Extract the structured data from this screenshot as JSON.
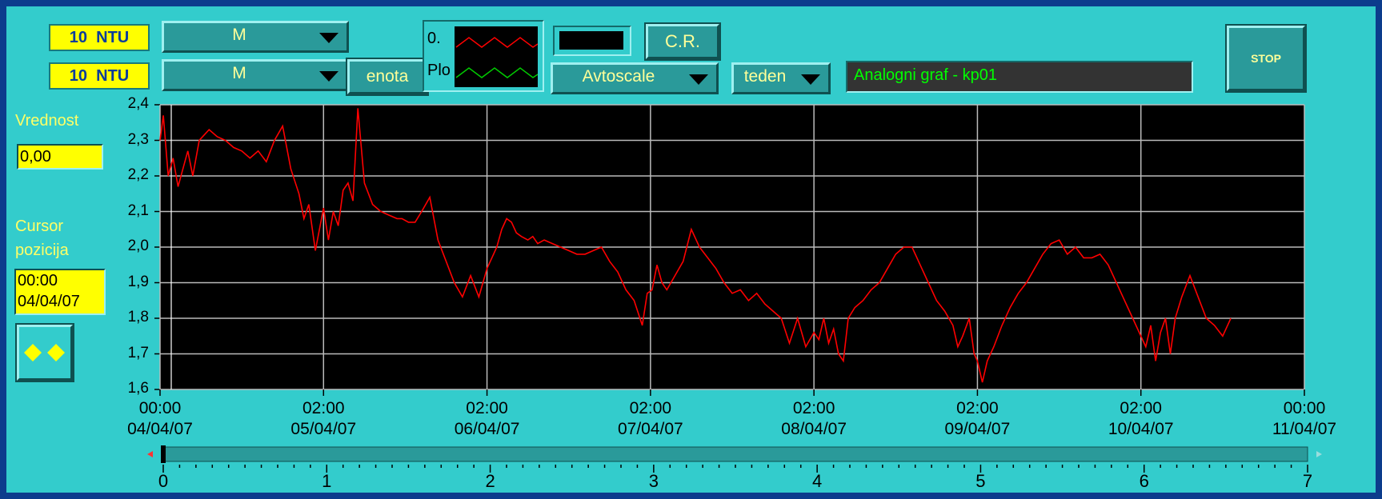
{
  "units": [
    {
      "value": "10",
      "unit": "NTU"
    },
    {
      "value": "10",
      "unit": "NTU"
    }
  ],
  "selectors": {
    "mode_1": "M",
    "mode_2": "M",
    "scale": "Avtoscale",
    "period": "teden"
  },
  "buttons": {
    "enota": "enota",
    "cr": "C.R.",
    "stop": "STOP"
  },
  "legend": {
    "row1_label": "0.",
    "row2_label": "Plo"
  },
  "graph_title": "Analogni graf - kp01",
  "value_panel": {
    "label": "Vrednost",
    "value": "0,00"
  },
  "cursor_panel": {
    "label_line1": "Cursor",
    "label_line2": "pozicija",
    "time": "00:00",
    "date": "04/04/07"
  },
  "icons": {
    "cursor_move": "diamond-pair-icon"
  },
  "colors": {
    "panel": "#33cccc",
    "plot_bg": "#000000",
    "trace": "#ff0000",
    "indicator": "#ffff00",
    "title_text": "#00ff00"
  },
  "chart_data": {
    "type": "line",
    "ylim": [
      1.6,
      2.4
    ],
    "y_ticks": [
      "2,4",
      "2,3",
      "2,2",
      "2,1",
      "2,0",
      "1,9",
      "1,8",
      "1,7",
      "1,6"
    ],
    "x_ticks": [
      {
        "time": "00:00",
        "date": "04/04/07"
      },
      {
        "time": "02:00",
        "date": "05/04/07"
      },
      {
        "time": "02:00",
        "date": "06/04/07"
      },
      {
        "time": "02:00",
        "date": "07/04/07"
      },
      {
        "time": "02:00",
        "date": "08/04/07"
      },
      {
        "time": "02:00",
        "date": "09/04/07"
      },
      {
        "time": "02:00",
        "date": "10/04/07"
      },
      {
        "time": "00:00",
        "date": "11/04/07"
      }
    ],
    "grid": true,
    "series": [
      {
        "color": "#ff0000",
        "x": [
          0.0,
          0.02,
          0.05,
          0.08,
          0.11,
          0.14,
          0.17,
          0.2,
          0.24,
          0.28,
          0.3,
          0.35,
          0.4,
          0.45,
          0.5,
          0.55,
          0.6,
          0.65,
          0.7,
          0.75,
          0.8,
          0.85,
          0.88,
          0.91,
          0.95,
          1.0,
          1.03,
          1.06,
          1.09,
          1.12,
          1.15,
          1.18,
          1.21,
          1.25,
          1.3,
          1.35,
          1.4,
          1.45,
          1.48,
          1.52,
          1.56,
          1.6,
          1.65,
          1.7,
          1.75,
          1.8,
          1.85,
          1.9,
          1.95,
          2.0,
          2.03,
          2.06,
          2.09,
          2.12,
          2.15,
          2.18,
          2.21,
          2.25,
          2.28,
          2.31,
          2.35,
          2.4,
          2.45,
          2.5,
          2.55,
          2.6,
          2.65,
          2.7,
          2.75,
          2.8,
          2.85,
          2.9,
          2.95,
          2.98,
          3.01,
          3.04,
          3.07,
          3.1,
          3.15,
          3.2,
          3.25,
          3.3,
          3.35,
          3.4,
          3.45,
          3.5,
          3.55,
          3.6,
          3.65,
          3.7,
          3.75,
          3.8,
          3.85,
          3.9,
          3.95,
          4.0,
          4.03,
          4.06,
          4.09,
          4.12,
          4.15,
          4.18,
          4.21,
          4.25,
          4.3,
          4.35,
          4.4,
          4.45,
          4.5,
          4.55,
          4.6,
          4.65,
          4.7,
          4.75,
          4.8,
          4.85,
          4.88,
          4.91,
          4.95,
          4.98,
          5.0,
          5.03,
          5.06,
          5.1,
          5.15,
          5.2,
          5.25,
          5.3,
          5.35,
          5.4,
          5.45,
          5.5,
          5.55,
          5.6,
          5.65,
          5.7,
          5.75,
          5.8,
          5.85,
          5.9,
          5.95,
          6.0,
          6.03,
          6.06,
          6.09,
          6.12,
          6.15,
          6.18,
          6.21,
          6.25,
          6.3,
          6.35,
          6.4,
          6.45,
          6.5,
          6.55
        ],
        "y": [
          2.3,
          2.37,
          2.2,
          2.25,
          2.17,
          2.22,
          2.27,
          2.2,
          2.3,
          2.32,
          2.33,
          2.31,
          2.3,
          2.28,
          2.27,
          2.25,
          2.27,
          2.24,
          2.3,
          2.34,
          2.22,
          2.15,
          2.08,
          2.12,
          1.99,
          2.11,
          2.02,
          2.1,
          2.06,
          2.16,
          2.18,
          2.13,
          2.39,
          2.18,
          2.12,
          2.1,
          2.09,
          2.08,
          2.08,
          2.07,
          2.07,
          2.1,
          2.14,
          2.02,
          1.96,
          1.9,
          1.86,
          1.92,
          1.86,
          1.94,
          1.97,
          2.0,
          2.05,
          2.08,
          2.07,
          2.04,
          2.03,
          2.02,
          2.03,
          2.01,
          2.02,
          2.01,
          2.0,
          1.99,
          1.98,
          1.98,
          1.99,
          2.0,
          1.96,
          1.93,
          1.88,
          1.85,
          1.78,
          1.87,
          1.88,
          1.95,
          1.9,
          1.88,
          1.92,
          1.96,
          2.05,
          2.0,
          1.97,
          1.94,
          1.9,
          1.87,
          1.88,
          1.85,
          1.87,
          1.84,
          1.82,
          1.8,
          1.73,
          1.8,
          1.72,
          1.76,
          1.74,
          1.8,
          1.73,
          1.77,
          1.7,
          1.68,
          1.8,
          1.83,
          1.85,
          1.88,
          1.9,
          1.94,
          1.98,
          2.0,
          2.0,
          1.95,
          1.9,
          1.85,
          1.82,
          1.78,
          1.72,
          1.75,
          1.8,
          1.7,
          1.68,
          1.62,
          1.68,
          1.72,
          1.78,
          1.83,
          1.87,
          1.9,
          1.94,
          1.98,
          2.01,
          2.02,
          1.98,
          2.0,
          1.97,
          1.97,
          1.98,
          1.95,
          1.9,
          1.85,
          1.8,
          1.75,
          1.72,
          1.78,
          1.68,
          1.76,
          1.8,
          1.7,
          1.8,
          1.86,
          1.92,
          1.86,
          1.8,
          1.78,
          1.75,
          1.8
        ]
      }
    ]
  },
  "slider": {
    "min": 0,
    "max": 7,
    "value": 0,
    "labels": [
      "0",
      "1",
      "2",
      "3",
      "4",
      "5",
      "6",
      "7"
    ]
  }
}
